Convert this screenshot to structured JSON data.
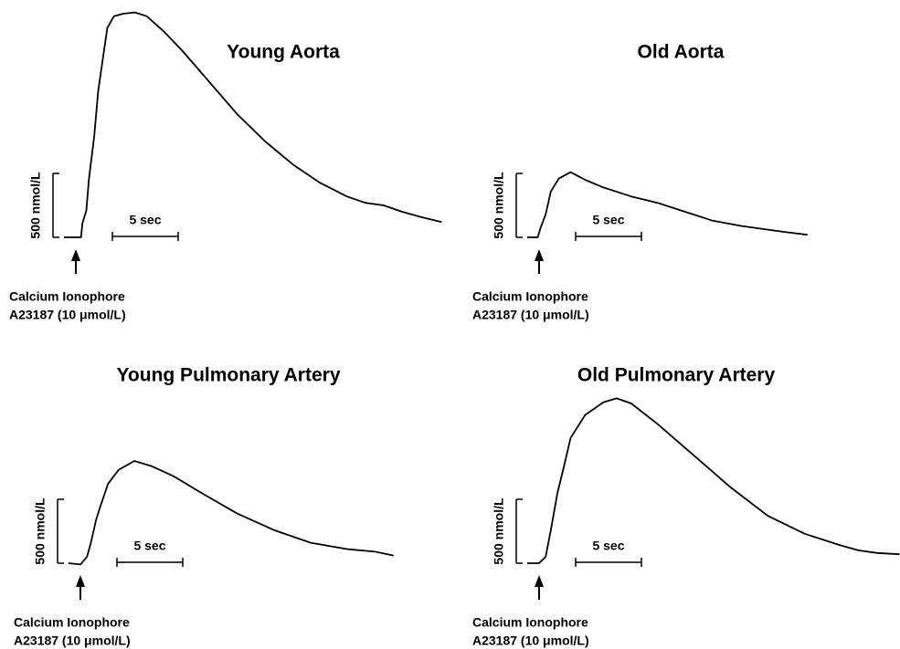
{
  "chart_data": [
    {
      "type": "line",
      "title": "Young Aorta",
      "color": "#000000",
      "xlim": [
        0,
        30
      ],
      "ylim": [
        0,
        1800
      ],
      "y_scale_bar": {
        "value": 500,
        "label": "500 nmol/L"
      },
      "x_scale_bar": {
        "value": 5,
        "label": "5 sec"
      },
      "annotation": [
        "Calcium Ionophore",
        "A23187 (10 μmol/L)"
      ],
      "x": [
        0,
        1.3,
        1.4,
        1.7,
        1.9,
        2.3,
        2.6,
        3.0,
        3.3,
        3.8,
        4.5,
        5.4,
        6.3,
        7.6,
        9.0,
        11.1,
        13.2,
        15.3,
        17.4,
        19.4,
        21.5,
        22.9,
        24.3,
        25.7,
        27.1,
        28.7
      ],
      "values": [
        0,
        0,
        110,
        210,
        460,
        790,
        1140,
        1430,
        1640,
        1730,
        1750,
        1760,
        1730,
        1610,
        1460,
        1210,
        960,
        750,
        570,
        430,
        320,
        270,
        250,
        200,
        160,
        120
      ]
    },
    {
      "type": "line",
      "title": "Old Aorta",
      "color": "#000000",
      "xlim": [
        0,
        30
      ],
      "ylim": [
        0,
        1800
      ],
      "y_scale_bar": {
        "value": 500,
        "label": "500 nmol/L"
      },
      "x_scale_bar": {
        "value": 5,
        "label": "5 sec"
      },
      "annotation": [
        "Calcium Ionophore",
        "A23187 (10 μmol/L)"
      ],
      "x": [
        0,
        0.8,
        1.0,
        1.4,
        1.8,
        2.4,
        3.3,
        4.4,
        5.8,
        7.9,
        9.9,
        12.0,
        14.1,
        16.2,
        18.3,
        19.7,
        21.3
      ],
      "values": [
        0,
        0,
        70,
        180,
        360,
        460,
        510,
        450,
        390,
        320,
        270,
        200,
        130,
        90,
        60,
        40,
        20
      ]
    },
    {
      "type": "line",
      "title": "Young Pulmonary Artery",
      "color": "#000000",
      "xlim": [
        0,
        30
      ],
      "ylim": [
        0,
        1800
      ],
      "y_scale_bar": {
        "value": 500,
        "label": "500 nmol/L"
      },
      "x_scale_bar": {
        "value": 5,
        "label": "5 sec"
      },
      "annotation": [
        "Calcium Ionophore",
        "A23187 (10 μmol/L)"
      ],
      "x": [
        0,
        0.9,
        1.4,
        1.7,
        2.1,
        2.4,
        3.0,
        3.8,
        5.0,
        6.3,
        8.0,
        10.1,
        12.8,
        15.6,
        18.4,
        21.2,
        23.3,
        24.7
      ],
      "values": [
        0,
        -10,
        50,
        160,
        340,
        440,
        620,
        730,
        800,
        760,
        680,
        550,
        390,
        260,
        160,
        110,
        90,
        60
      ]
    },
    {
      "type": "line",
      "title": "Old Pulmonary Artery",
      "color": "#000000",
      "xlim": [
        0,
        30
      ],
      "ylim": [
        0,
        1800
      ],
      "y_scale_bar": {
        "value": 500,
        "label": "500 nmol/L"
      },
      "x_scale_bar": {
        "value": 5,
        "label": "5 sec"
      },
      "annotation": [
        "Calcium Ionophore",
        "A23187 (10 μmol/L)"
      ],
      "x": [
        0,
        0.9,
        1.4,
        1.8,
        2.3,
        2.8,
        3.3,
        4.4,
        5.8,
        6.8,
        7.9,
        9.9,
        12.7,
        15.5,
        18.3,
        21.1,
        23.8,
        25.2,
        26.6,
        28.3
      ],
      "values": [
        0,
        0,
        50,
        260,
        550,
        760,
        980,
        1160,
        1260,
        1290,
        1250,
        1090,
        840,
        590,
        370,
        230,
        140,
        100,
        80,
        70
      ]
    }
  ]
}
